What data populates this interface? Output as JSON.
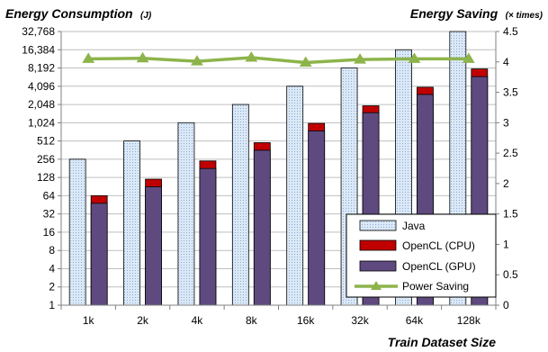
{
  "chart_data": {
    "type": "bar",
    "title_left": "Energy Consumption",
    "title_left_unit": "(J)",
    "title_right": "Energy Saving",
    "title_right_unit": "(× times)",
    "xlabel": "Train Dataset Size",
    "categories": [
      "1k",
      "2k",
      "4k",
      "8k",
      "16k",
      "32k",
      "64k",
      "128k"
    ],
    "y_left_scale": "log2",
    "y_left_ticks": [
      "1",
      "2",
      "4",
      "8",
      "16",
      "32",
      "64",
      "128",
      "256",
      "512",
      "1,024",
      "2,048",
      "4,096",
      "8,192",
      "16,384",
      "32,768"
    ],
    "ylim_left": [
      1,
      32768
    ],
    "y_right_ticks": [
      "0",
      "0.5",
      "1",
      "1.5",
      "2",
      "2.5",
      "3",
      "3.5",
      "4",
      "4.5"
    ],
    "ylim_right": [
      0,
      4.5
    ],
    "grid": true,
    "legend_position": "bottom-right",
    "series": [
      {
        "name": "Java",
        "kind": "bar",
        "axis": "left",
        "color": "#dbe8f6",
        "values": [
          256,
          512,
          1024,
          2048,
          4096,
          8192,
          16384,
          32768
        ]
      },
      {
        "name": "OpenCL (CPU)",
        "kind": "stacked-bar-top",
        "axis": "left",
        "color": "#c00000",
        "values": [
          64,
          120,
          240,
          480,
          1000,
          1950,
          3950,
          7900
        ]
      },
      {
        "name": "OpenCL (GPU)",
        "kind": "stacked-bar-bottom",
        "axis": "left",
        "color": "#5f4a80",
        "values": [
          48,
          90,
          180,
          360,
          750,
          1500,
          3000,
          5900
        ]
      },
      {
        "name": "Power Saving",
        "kind": "line",
        "axis": "right",
        "color": "#8db44b",
        "values": [
          4.05,
          4.06,
          4.01,
          4.07,
          3.99,
          4.04,
          4.05,
          4.05
        ]
      }
    ]
  }
}
